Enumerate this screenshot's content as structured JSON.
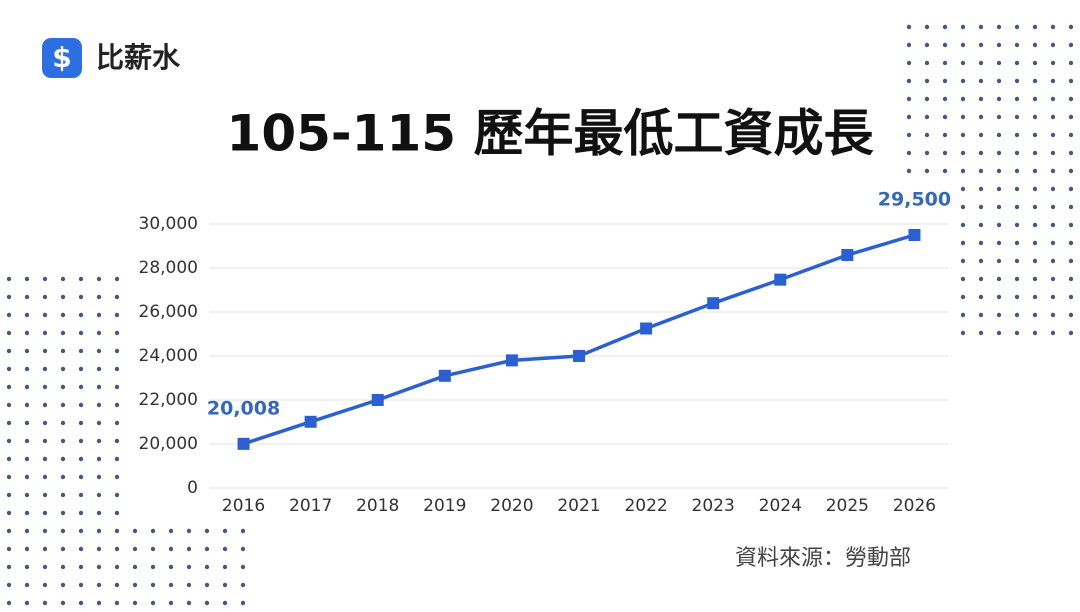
{
  "brand": "比薪水",
  "chart_data": {
    "type": "line",
    "title": "105-115 歷年最低工資成長",
    "categories": [
      "2016",
      "2017",
      "2018",
      "2019",
      "2020",
      "2021",
      "2022",
      "2023",
      "2024",
      "2025",
      "2026"
    ],
    "values": [
      20008,
      21009,
      22000,
      23100,
      23800,
      24000,
      25250,
      26400,
      27470,
      28590,
      29500
    ],
    "value_labels": [
      "20,008",
      null,
      null,
      null,
      null,
      null,
      null,
      null,
      null,
      null,
      "29,500"
    ],
    "color": "#2c5fd0",
    "label_color": "#3568b8",
    "ylim": [
      0,
      30000
    ],
    "axis_break": [
      0,
      20000
    ],
    "yticks": [
      0,
      {
        "value": 20000,
        "label": "20,000"
      },
      {
        "value": 22000,
        "label": "22,000"
      },
      {
        "value": 24000,
        "label": "24,000"
      },
      {
        "value": 26000,
        "label": "26,000"
      },
      {
        "value": 28000,
        "label": "28,000"
      },
      {
        "value": 30000,
        "label": "30,000"
      }
    ],
    "grid": true
  },
  "source": "資料來源：勞動部"
}
